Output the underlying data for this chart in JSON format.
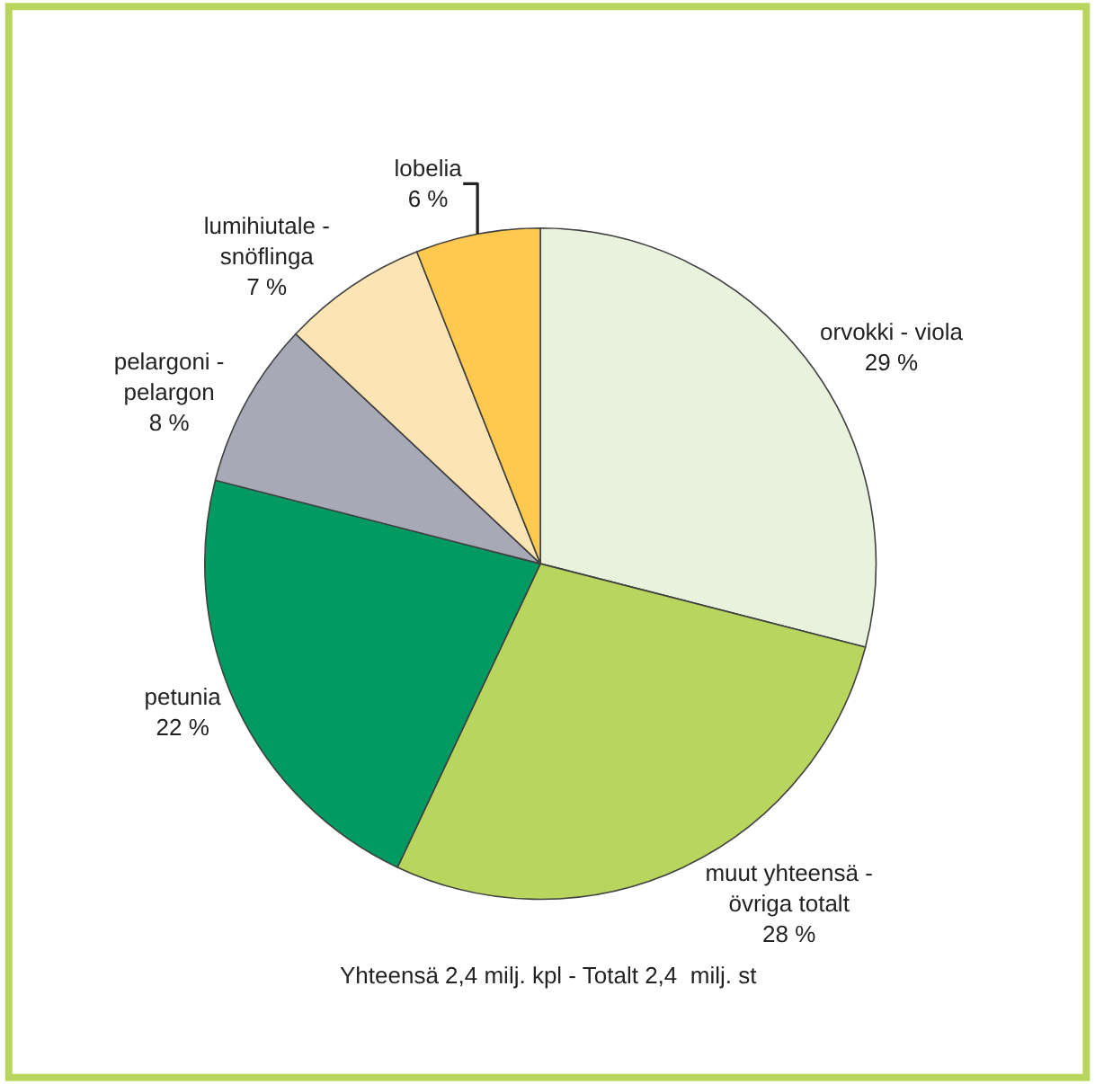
{
  "chart_data": {
    "type": "pie",
    "categories": [
      "orvokki - viola",
      "muut yhteensä -\növriga totalt",
      "petunia",
      "pelargoni -\npelargon",
      "lumihiutale -\nsnöflinga",
      "lobelia"
    ],
    "values": [
      29,
      28,
      22,
      8,
      7,
      6
    ],
    "value_labels": [
      "29 %",
      "28 %",
      "22 %",
      "8 %",
      "7 %",
      "6 %"
    ],
    "colors": [
      "#e8f2dc",
      "#b8d65e",
      "#009a62",
      "#a7a9b7",
      "#fde4b4",
      "#fdca4f"
    ],
    "annotations": [
      "Yhteensä 2,4 milj. kpl - Totalt 2,4  milj. st"
    ],
    "legend": false
  }
}
